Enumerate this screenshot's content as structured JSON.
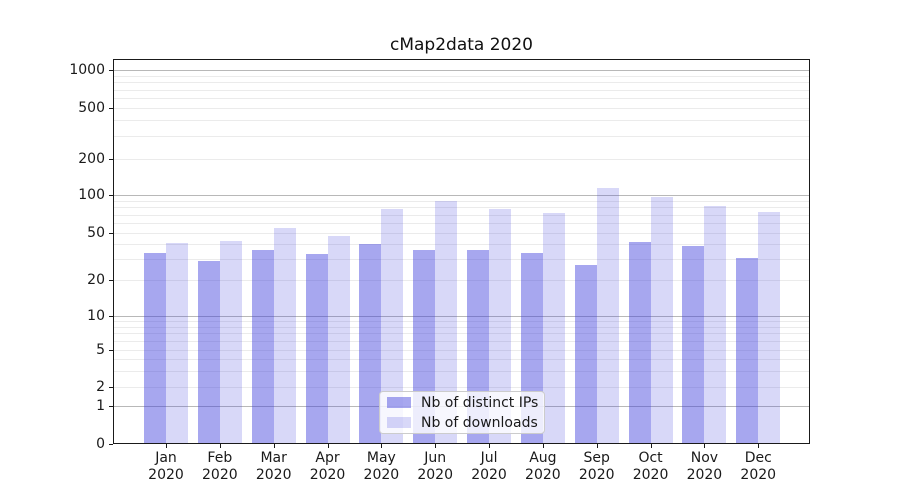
{
  "title": "cMap2data 2020",
  "legend": {
    "items": [
      {
        "label": "Nb of distinct IPs",
        "swatch": "ips"
      },
      {
        "label": "Nb of downloads",
        "swatch": "downloads"
      }
    ]
  },
  "xaxis": {
    "months": [
      "Jan",
      "Feb",
      "Mar",
      "Apr",
      "May",
      "Jun",
      "Jul",
      "Aug",
      "Sep",
      "Oct",
      "Nov",
      "Dec"
    ],
    "year": "2020"
  },
  "yaxis": {
    "tick_labels": [
      "0",
      "1",
      "2",
      "5",
      "10",
      "20",
      "50",
      "100",
      "200",
      "500",
      "1000"
    ]
  },
  "colors": {
    "ips_bar": "rgba(60,60,220,0.45)",
    "downloads_bar": "rgba(60,60,220,0.20)",
    "major_grid": "#b8b8b8",
    "minor_grid": "#ebebeb",
    "spine": "#1a1a1a"
  },
  "chart_data": {
    "type": "bar",
    "title": "cMap2data 2020",
    "categories": [
      "Jan 2020",
      "Feb 2020",
      "Mar 2020",
      "Apr 2020",
      "May 2020",
      "Jun 2020",
      "Jul 2020",
      "Aug 2020",
      "Sep 2020",
      "Oct 2020",
      "Nov 2020",
      "Dec 2020"
    ],
    "series": [
      {
        "name": "Nb of distinct IPs",
        "values": [
          34,
          29,
          36,
          33,
          40,
          36,
          36,
          34,
          27,
          42,
          39,
          31
        ]
      },
      {
        "name": "Nb of downloads",
        "values": [
          41,
          43,
          55,
          47,
          77,
          90,
          78,
          72,
          115,
          96,
          82,
          73
        ]
      }
    ],
    "xlabel": "",
    "ylabel": "",
    "yscale": "symlog",
    "yticks": [
      0,
      1,
      2,
      5,
      10,
      20,
      50,
      100,
      200,
      500,
      1000
    ],
    "ylim": [
      0,
      1200
    ],
    "grid": true,
    "legend_position": "lower center"
  }
}
